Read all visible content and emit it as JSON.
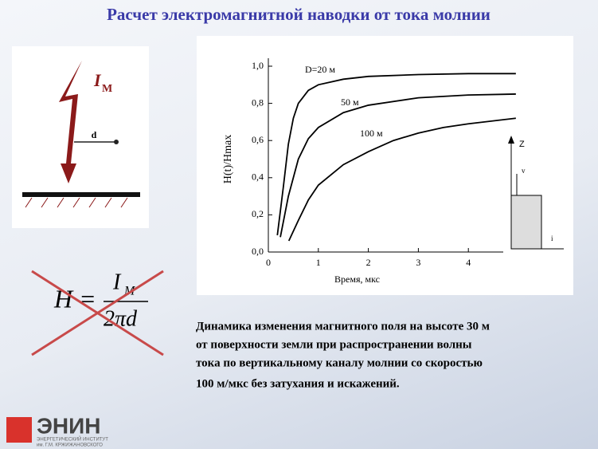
{
  "slide": {
    "title": "Расчет электромагнитной наводки от тока молнии",
    "lightning_current": "I",
    "lightning_current_sub": "М",
    "distance": "d",
    "formula_lhs": "H =",
    "formula_num": "I",
    "formula_num_sub": "М",
    "formula_den": "2πd",
    "inset_z": "Z",
    "inset_v": "v",
    "inset_i": "i",
    "caption": [
      "Динамика изменения магнитного поля на высоте 30 м",
      "от поверхности земли  при распространении волны",
      "тока по вертикальному каналу молнии со  скоростью",
      "100 м/мкс без затухания и искажений."
    ],
    "logo": "ЭНИН",
    "logo_sub": [
      "ЭНЕРГЕТИЧЕСКИЙ ИНСТИТУТ",
      "им. Г.М. КРЖИЖАНОВСКОГО"
    ]
  },
  "chart_data": {
    "type": "line",
    "x_label": "Время, мкс",
    "y_label": "H(t)/Hmax",
    "xlim": [
      0,
      5
    ],
    "xticks": [
      0,
      1,
      2,
      3,
      4
    ],
    "ylim": [
      0,
      1.0
    ],
    "yticks": [
      {
        "value": 0,
        "label": "0,0"
      },
      {
        "value": 0.2,
        "label": "0,2"
      },
      {
        "value": 0.4,
        "label": "0,4"
      },
      {
        "value": 0.6,
        "label": "0,6"
      },
      {
        "value": 0.8,
        "label": "0,8"
      },
      {
        "value": 1.0,
        "label": "1,0"
      }
    ],
    "series": [
      {
        "name": "D=20 м",
        "color": "#000000",
        "x": [
          0.18,
          0.3,
          0.4,
          0.5,
          0.6,
          0.8,
          1.0,
          1.5,
          2,
          3,
          4,
          4.95
        ],
        "values": [
          0.09,
          0.35,
          0.58,
          0.72,
          0.8,
          0.87,
          0.9,
          0.93,
          0.945,
          0.955,
          0.96,
          0.96
        ]
      },
      {
        "name": "50 м",
        "color": "#000000",
        "x": [
          0.24,
          0.4,
          0.6,
          0.8,
          1.0,
          1.5,
          2,
          3,
          4,
          4.95
        ],
        "values": [
          0.08,
          0.3,
          0.5,
          0.61,
          0.67,
          0.75,
          0.79,
          0.83,
          0.845,
          0.85
        ]
      },
      {
        "name": "100 м",
        "color": "#000000",
        "x": [
          0.41,
          0.6,
          0.8,
          1.0,
          1.5,
          2,
          2.5,
          3,
          3.5,
          4,
          4.95
        ],
        "values": [
          0.06,
          0.17,
          0.28,
          0.36,
          0.47,
          0.54,
          0.6,
          0.64,
          0.67,
          0.69,
          0.72
        ]
      }
    ]
  }
}
